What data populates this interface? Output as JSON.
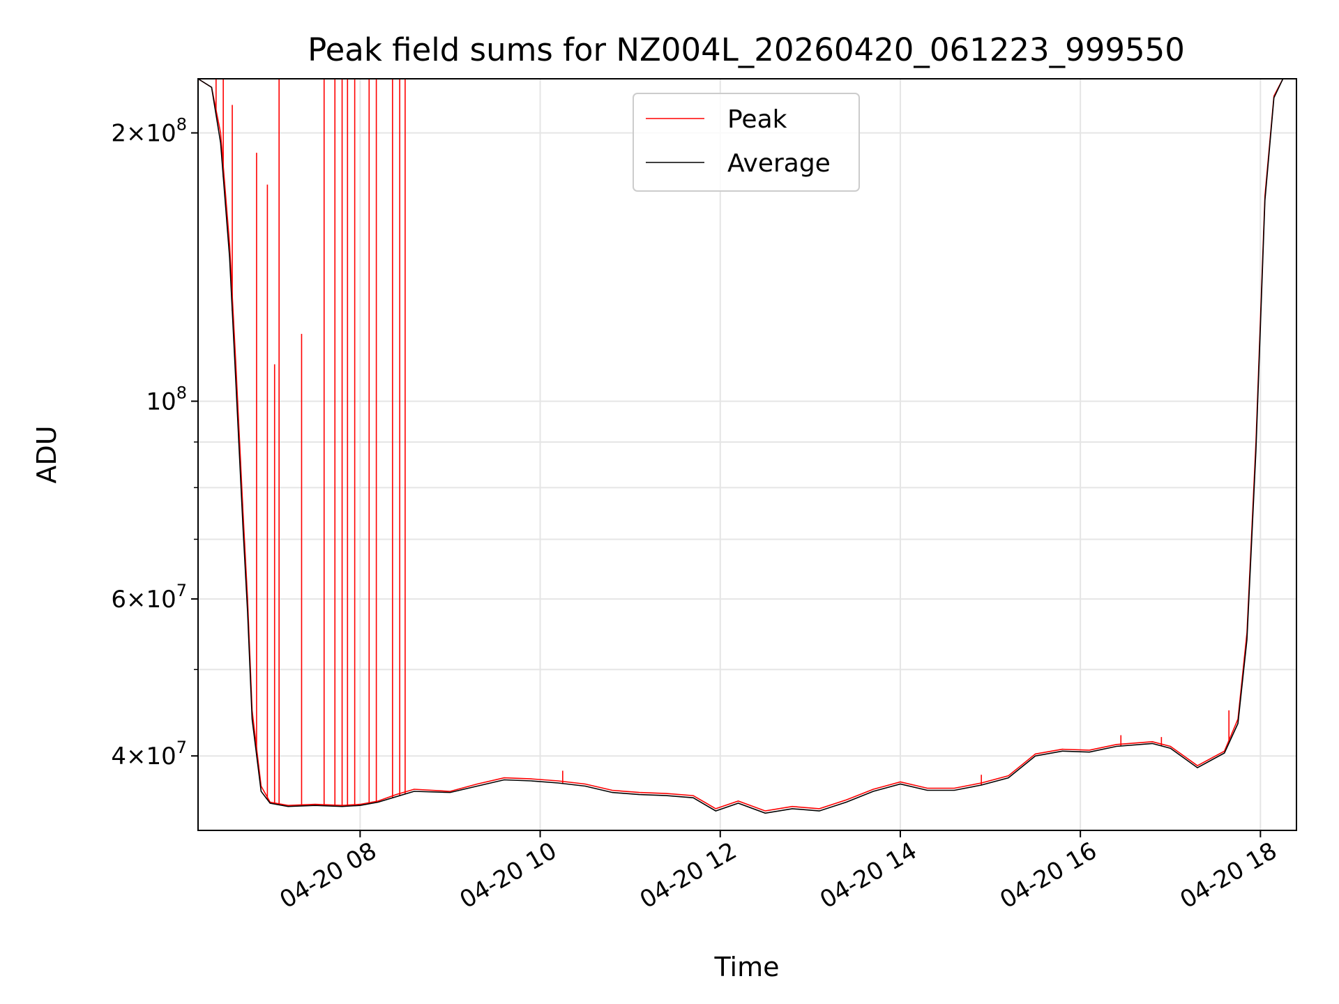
{
  "chart_data": {
    "type": "line",
    "title": "Peak field sums for NZ004L_20260420_061223_999550",
    "xlabel": "Time",
    "ylabel": "ADU",
    "y_scale": "log",
    "ylim": [
      33000000,
      230000000
    ],
    "x_unit": "hours on 2026-04-20",
    "xlim": [
      6.2,
      18.4
    ],
    "grid": true,
    "legend_position": "upper center",
    "x_ticks": [
      {
        "value": 8,
        "label": "04-20 08"
      },
      {
        "value": 10,
        "label": "04-20 10"
      },
      {
        "value": 12,
        "label": "04-20 12"
      },
      {
        "value": 14,
        "label": "04-20 14"
      },
      {
        "value": 16,
        "label": "04-20 16"
      },
      {
        "value": 18,
        "label": "04-20 18"
      }
    ],
    "y_major_ticks": [
      {
        "value": 40000000,
        "mantissa": "4",
        "exponent": "7"
      },
      {
        "value": 60000000,
        "mantissa": "6",
        "exponent": "7"
      },
      {
        "value": 100000000,
        "mantissa": "",
        "exponent": "8"
      },
      {
        "value": 200000000,
        "mantissa": "2",
        "exponent": "8"
      }
    ],
    "y_minor_ticks": [
      50000000,
      70000000,
      80000000,
      90000000
    ],
    "series": [
      {
        "name": "Peak",
        "color": "#ff0000",
        "x": [
          6.2,
          6.35,
          6.45,
          6.55,
          6.62,
          6.7,
          6.75,
          6.8,
          6.9,
          7.0,
          7.2,
          7.5,
          7.8,
          8.0,
          8.2,
          8.4,
          8.6,
          9.0,
          9.3,
          9.6,
          9.9,
          10.2,
          10.5,
          10.8,
          11.1,
          11.4,
          11.7,
          11.95,
          12.2,
          12.5,
          12.8,
          13.1,
          13.4,
          13.7,
          14.0,
          14.3,
          14.6,
          14.9,
          15.2,
          15.5,
          15.8,
          16.1,
          16.4,
          16.8,
          17.0,
          17.3,
          17.6,
          17.75,
          17.85,
          17.95,
          18.05,
          18.15,
          18.25,
          18.4
        ],
        "y": [
          230000000,
          225000000,
          200000000,
          150000000,
          110000000,
          75000000,
          60000000,
          45000000,
          37000000,
          35500000,
          35200000,
          35300000,
          35200000,
          35300000,
          35600000,
          36200000,
          36700000,
          36500000,
          37200000,
          37800000,
          37700000,
          37500000,
          37200000,
          36600000,
          36400000,
          36300000,
          36100000,
          34900000,
          35600000,
          34700000,
          35100000,
          34900000,
          35700000,
          36700000,
          37400000,
          36800000,
          36800000,
          37300000,
          38000000,
          40200000,
          40700000,
          40600000,
          41200000,
          41500000,
          41000000,
          39000000,
          40500000,
          44000000,
          55000000,
          90000000,
          170000000,
          220000000,
          230000000,
          230000000
        ]
      },
      {
        "name": "Average",
        "color": "#000000",
        "x": [
          6.2,
          6.35,
          6.45,
          6.55,
          6.62,
          6.7,
          6.75,
          6.8,
          6.9,
          7.0,
          7.2,
          7.5,
          7.8,
          8.0,
          8.2,
          8.4,
          8.6,
          9.0,
          9.3,
          9.6,
          9.9,
          10.2,
          10.5,
          10.8,
          11.1,
          11.4,
          11.7,
          11.95,
          12.2,
          12.5,
          12.8,
          13.1,
          13.4,
          13.7,
          14.0,
          14.3,
          14.6,
          14.9,
          15.2,
          15.5,
          15.8,
          16.1,
          16.4,
          16.8,
          17.0,
          17.3,
          17.6,
          17.75,
          17.85,
          17.95,
          18.05,
          18.15,
          18.25,
          18.4
        ],
        "y": [
          230000000,
          225000000,
          195000000,
          145000000,
          105000000,
          72000000,
          58000000,
          44000000,
          36500000,
          35400000,
          35100000,
          35200000,
          35100000,
          35200000,
          35500000,
          36000000,
          36500000,
          36400000,
          37000000,
          37600000,
          37500000,
          37300000,
          37000000,
          36400000,
          36200000,
          36100000,
          35900000,
          34700000,
          35400000,
          34500000,
          34900000,
          34700000,
          35500000,
          36500000,
          37200000,
          36600000,
          36600000,
          37100000,
          37800000,
          40000000,
          40500000,
          40400000,
          41000000,
          41300000,
          40800000,
          38800000,
          40300000,
          43500000,
          54000000,
          88000000,
          168000000,
          219000000,
          230000000,
          230000000
        ]
      }
    ],
    "peak_spikes": [
      {
        "x": 6.4,
        "y": 230000000
      },
      {
        "x": 6.48,
        "y": 230000000
      },
      {
        "x": 6.58,
        "y": 215000000
      },
      {
        "x": 6.85,
        "y": 190000000
      },
      {
        "x": 6.97,
        "y": 175000000
      },
      {
        "x": 7.05,
        "y": 110000000
      },
      {
        "x": 7.1,
        "y": 230000000
      },
      {
        "x": 7.35,
        "y": 119000000
      },
      {
        "x": 7.6,
        "y": 230000000
      },
      {
        "x": 7.72,
        "y": 230000000
      },
      {
        "x": 7.8,
        "y": 230000000
      },
      {
        "x": 7.86,
        "y": 230000000
      },
      {
        "x": 7.94,
        "y": 230000000
      },
      {
        "x": 8.1,
        "y": 230000000
      },
      {
        "x": 8.18,
        "y": 230000000
      },
      {
        "x": 8.36,
        "y": 230000000
      },
      {
        "x": 8.44,
        "y": 230000000
      },
      {
        "x": 8.5,
        "y": 230000000
      },
      {
        "x": 10.25,
        "y": 38500000
      },
      {
        "x": 14.9,
        "y": 38100000
      },
      {
        "x": 16.45,
        "y": 42200000
      },
      {
        "x": 16.9,
        "y": 42000000
      },
      {
        "x": 17.65,
        "y": 45000000
      }
    ]
  }
}
